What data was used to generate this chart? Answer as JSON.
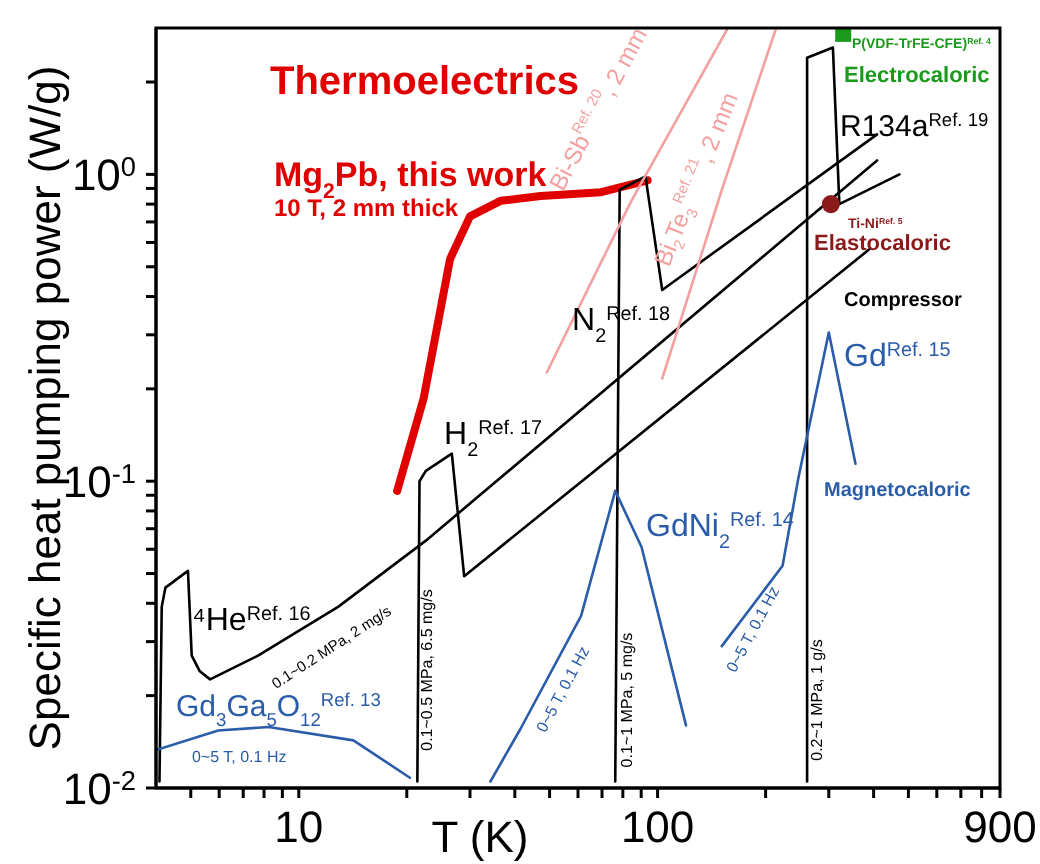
{
  "chart_data": {
    "type": "line",
    "xlabel": "T (K)",
    "ylabel": "Specific heat pumping power (W/g)",
    "log": "xy",
    "marker": "none",
    "xlim": [
      4,
      900
    ],
    "ylim": [
      0.01,
      3
    ],
    "xticks": [
      {
        "value": 5,
        "label": null
      },
      {
        "value": 6,
        "label": null
      },
      {
        "value": 7,
        "label": null
      },
      {
        "value": 8,
        "label": null
      },
      {
        "value": 9,
        "label": null
      },
      10,
      {
        "value": 20,
        "label": null
      },
      {
        "value": 30,
        "label": null
      },
      {
        "value": 40,
        "label": null
      },
      {
        "value": 50,
        "label": null
      },
      {
        "value": 60,
        "label": null
      },
      {
        "value": 70,
        "label": null
      },
      {
        "value": 80,
        "label": null
      },
      {
        "value": 90,
        "label": null
      },
      100,
      {
        "value": 200,
        "label": null
      },
      {
        "value": 300,
        "label": null
      },
      {
        "value": 400,
        "label": null
      },
      {
        "value": 500,
        "label": null
      },
      {
        "value": 600,
        "label": null
      },
      {
        "value": 700,
        "label": null
      },
      {
        "value": 800,
        "label": null
      },
      900
    ],
    "yticks": [
      {
        "value": 0.01,
        "label": "10$^{-2}$"
      },
      {
        "value": 0.02,
        "label": null
      },
      {
        "value": 0.03,
        "label": null
      },
      {
        "value": 0.04,
        "label": null
      },
      {
        "value": 0.05,
        "label": null
      },
      {
        "value": 0.06,
        "label": null
      },
      {
        "value": 0.07,
        "label": null
      },
      {
        "value": 0.08,
        "label": null
      },
      {
        "value": 0.09,
        "label": null
      },
      {
        "value": 0.1,
        "label": "10$^{-1}$"
      },
      {
        "value": 0.2,
        "label": null
      },
      {
        "value": 0.3,
        "label": null
      },
      {
        "value": 0.4,
        "label": null
      },
      {
        "value": 0.5,
        "label": null
      },
      {
        "value": 0.6,
        "label": null
      },
      {
        "value": 0.7,
        "label": null
      },
      {
        "value": 0.8,
        "label": null
      },
      {
        "value": 0.9,
        "label": null
      },
      {
        "value": 1,
        "label": "10$^{0}$"
      },
      {
        "value": 2,
        "label": null
      }
    ],
    "series": [
      {
        "color": "#e00000",
        "x": [
          18.8,
          22.3,
          26.4,
          30,
          36.5,
          47.2,
          69.6,
          93.8
        ],
        "values": [
          0.093,
          0.187,
          0.53,
          0.73,
          0.82,
          0.85,
          0.875,
          0.956
        ]
      },
      {
        "color": "#000000",
        "x": [
          4.09,
          4.15,
          4.25,
          4.91,
          5.03,
          5.3,
          5.66,
          7.7,
          12.9,
          22.6,
          409
        ],
        "values": [
          0.0105,
          0.039,
          0.045,
          0.051,
          0.027,
          0.024,
          0.0226,
          0.027,
          0.039,
          0.064,
          1.11
        ]
      },
      {
        "color": "#000000",
        "x": [
          21.4,
          21.7,
          22.6,
          26.7,
          28.9,
          389
        ],
        "values": [
          0.0105,
          0.1,
          0.108,
          0.123,
          0.049,
          0.57
        ]
      },
      {
        "color": "#000000",
        "x": [
          76.2,
          78.4,
          92.5,
          103,
          409
        ],
        "values": [
          0.0105,
          0.89,
          0.985,
          0.42,
          1.35
        ]
      },
      {
        "color": "#000000",
        "x": [
          261,
          261,
          308,
          321,
          472
        ],
        "values": [
          0.0105,
          2.4,
          2.59,
          0.8,
          1.0
        ]
      },
      {
        "color": "#f4a0a0",
        "x": [
          49.1,
          84.5,
          157
        ],
        "values": [
          0.226,
          0.82,
          3.0
        ]
      },
      {
        "color": "#f4a0a0",
        "x": [
          103,
          151,
          214
        ],
        "values": [
          0.216,
          0.89,
          3.0
        ]
      },
      {
        "color": "#2a5caa",
        "x": [
          4,
          5.96,
          8.24,
          14.2,
          20.4
        ],
        "values": [
          0.0133,
          0.0154,
          0.0158,
          0.0143,
          0.0108
        ]
      },
      {
        "color": "#2a5caa",
        "x": [
          34.2,
          41.5,
          61.2,
          76.2,
          90.2,
          120
        ],
        "values": [
          0.0105,
          0.0156,
          0.0364,
          0.093,
          0.061,
          0.016
        ]
      },
      {
        "color": "#2a5caa",
        "x": [
          151,
          223,
          247,
          300,
          356
        ],
        "values": [
          0.029,
          0.053,
          0.103,
          0.305,
          0.114
        ]
      },
      {
        "type": "scatter",
        "marker": "square",
        "color": "#1a9a1a",
        "x": [
          329
        ],
        "values": [
          2.87
        ]
      },
      {
        "type": "scatter",
        "marker": "circle",
        "color": "#8b1a1a",
        "x": [
          304
        ],
        "values": [
          0.8
        ]
      }
    ],
    "annotations": [
      "Thermoelectrics",
      "Mg$_{2}$Pb, this work",
      "10 T, 2 mm thick",
      "Bi-Sb$^{Ref. 20}$, 2 mm",
      "Bi$_{2}$Te$_{3}$$^{Ref. 21}$, 2 mm",
      "P(VDF-TrFE-CFE)$^{Ref. 4}$",
      "Electrocaloric",
      "R134a$^{Ref. 19}$",
      "Ti-Ni$^{Ref. 5}$",
      "Elastocaloric",
      "Compressor",
      "N$_{2}$$^{Ref. 18}$",
      "Gd$^{Ref. 15}$",
      "Magnetocaloric",
      "H$_{2}$$^{Ref. 17}$",
      "GdNi$_{2}$$^{Ref. 14}$",
      "⁴He$^{Ref. 16}$",
      "0.1~0.2 MPa, 2 mg/s",
      "Gd$_{3}$Ga$_{5}$O$_{12}$$^{Ref. 13}$",
      "0~5 T, 0.1 Hz",
      "0.1~0.5 MPa, 6.5 mg/s",
      "0~5 T, 0.1 Hz",
      "0.1~1 MPa, 5 mg/s",
      "0~5 T, 0.1 Hz",
      "0.2~1 MPa, 1 g/s"
    ]
  }
}
